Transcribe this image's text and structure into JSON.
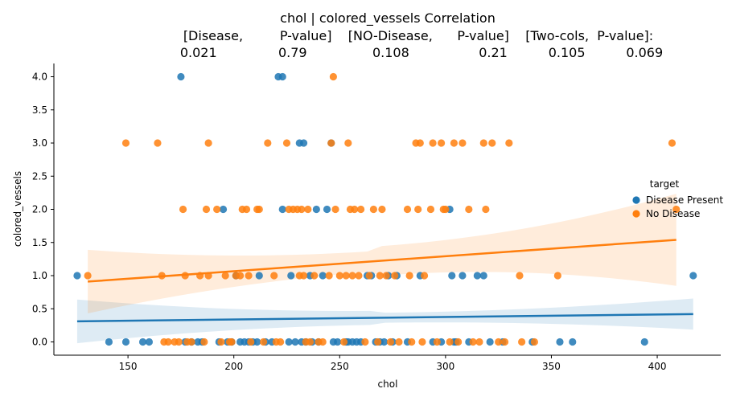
{
  "chart_data": {
    "type": "scatter",
    "title_lines": [
      "chol | colored_vessels    Correlation",
      "[Disease,         P-value]    [NO-Disease,      P-value]    [Two-cols,  P-value]:",
      "0.021               0.79                0.108                 0.21          0.105          0.069"
    ],
    "xlabel": "chol",
    "ylabel": "colored_vessels",
    "xlim": [
      115,
      430
    ],
    "ylim": [
      -0.2,
      4.2
    ],
    "xticks": [
      150,
      200,
      250,
      300,
      350,
      400
    ],
    "yticks": [
      0.0,
      0.5,
      1.0,
      1.5,
      2.0,
      2.5,
      3.0,
      3.5,
      4.0
    ],
    "xtick_labels": [
      "150",
      "200",
      "250",
      "300",
      "350",
      "400"
    ],
    "ytick_labels": [
      "0.0",
      "0.5",
      "1.0",
      "1.5",
      "2.0",
      "2.5",
      "3.0",
      "3.5",
      "4.0"
    ],
    "legend": {
      "title": "target",
      "placement": "right"
    },
    "grid": false,
    "series": [
      {
        "name": "Disease Present",
        "color": "#1f77b4",
        "regression": {
          "x": [
            126,
            417
          ],
          "y": [
            0.31,
            0.42
          ],
          "ci_lower": [
            -0.02,
            0.2
          ],
          "ci_upper": [
            0.64,
            0.67
          ]
        },
        "points": [
          [
            126,
            1
          ],
          [
            141,
            0
          ],
          [
            149,
            0
          ],
          [
            157,
            0
          ],
          [
            160,
            0
          ],
          [
            175,
            4
          ],
          [
            177,
            0
          ],
          [
            180,
            0
          ],
          [
            183,
            0
          ],
          [
            185,
            0
          ],
          [
            193,
            0
          ],
          [
            195,
            2
          ],
          [
            197,
            0
          ],
          [
            199,
            0
          ],
          [
            201,
            1
          ],
          [
            203,
            0
          ],
          [
            205,
            0
          ],
          [
            207,
            0
          ],
          [
            209,
            0
          ],
          [
            211,
            0
          ],
          [
            212,
            1
          ],
          [
            215,
            0
          ],
          [
            218,
            0
          ],
          [
            221,
            4
          ],
          [
            223,
            4
          ],
          [
            223,
            2
          ],
          [
            226,
            0
          ],
          [
            227,
            1
          ],
          [
            229,
            0
          ],
          [
            231,
            3
          ],
          [
            232,
            0
          ],
          [
            233,
            3
          ],
          [
            234,
            0
          ],
          [
            236,
            1
          ],
          [
            237,
            0
          ],
          [
            239,
            2
          ],
          [
            240,
            0
          ],
          [
            242,
            1
          ],
          [
            244,
            2
          ],
          [
            246,
            3
          ],
          [
            247,
            0
          ],
          [
            249,
            0
          ],
          [
            253,
            0
          ],
          [
            254,
            0
          ],
          [
            256,
            0
          ],
          [
            258,
            0
          ],
          [
            260,
            0
          ],
          [
            263,
            1
          ],
          [
            265,
            1
          ],
          [
            267,
            0
          ],
          [
            269,
            0
          ],
          [
            271,
            0
          ],
          [
            273,
            1
          ],
          [
            275,
            0
          ],
          [
            277,
            1
          ],
          [
            282,
            0
          ],
          [
            288,
            1
          ],
          [
            294,
            0
          ],
          [
            298,
            0
          ],
          [
            302,
            2
          ],
          [
            303,
            1
          ],
          [
            304,
            0
          ],
          [
            305,
            0
          ],
          [
            308,
            1
          ],
          [
            311,
            0
          ],
          [
            315,
            1
          ],
          [
            318,
            1
          ],
          [
            321,
            0
          ],
          [
            327,
            0
          ],
          [
            341,
            0
          ],
          [
            354,
            0
          ],
          [
            360,
            0
          ],
          [
            394,
            0
          ],
          [
            417,
            1
          ]
        ]
      },
      {
        "name": "No Disease",
        "color": "#ff7f0e",
        "regression": {
          "x": [
            131,
            409
          ],
          "y": [
            0.91,
            1.54
          ],
          "ci_lower": [
            0.44,
            0.85
          ],
          "ci_upper": [
            1.4,
            2.24
          ]
        },
        "points": [
          [
            131,
            1
          ],
          [
            149,
            3
          ],
          [
            164,
            3
          ],
          [
            166,
            1
          ],
          [
            167,
            0
          ],
          [
            169,
            0
          ],
          [
            172,
            0
          ],
          [
            174,
            0
          ],
          [
            176,
            2
          ],
          [
            177,
            1
          ],
          [
            178,
            0
          ],
          [
            180,
            0
          ],
          [
            184,
            1
          ],
          [
            186,
            0
          ],
          [
            187,
            2
          ],
          [
            188,
            3
          ],
          [
            188,
            1
          ],
          [
            192,
            2
          ],
          [
            194,
            0
          ],
          [
            196,
            1
          ],
          [
            198,
            0
          ],
          [
            199,
            0
          ],
          [
            201,
            1
          ],
          [
            203,
            1
          ],
          [
            204,
            2
          ],
          [
            206,
            2
          ],
          [
            207,
            1
          ],
          [
            208,
            0
          ],
          [
            211,
            2
          ],
          [
            212,
            2
          ],
          [
            214,
            0
          ],
          [
            216,
            3
          ],
          [
            219,
            1
          ],
          [
            220,
            0
          ],
          [
            222,
            0
          ],
          [
            225,
            3
          ],
          [
            226,
            2
          ],
          [
            228,
            2
          ],
          [
            230,
            2
          ],
          [
            231,
            1
          ],
          [
            232,
            2
          ],
          [
            233,
            1
          ],
          [
            234,
            0
          ],
          [
            235,
            2
          ],
          [
            236,
            0
          ],
          [
            238,
            1
          ],
          [
            240,
            0
          ],
          [
            242,
            0
          ],
          [
            245,
            1
          ],
          [
            246,
            3
          ],
          [
            247,
            4
          ],
          [
            248,
            2
          ],
          [
            250,
            1
          ],
          [
            252,
            0
          ],
          [
            253,
            1
          ],
          [
            254,
            3
          ],
          [
            255,
            2
          ],
          [
            256,
            1
          ],
          [
            257,
            2
          ],
          [
            259,
            1
          ],
          [
            260,
            2
          ],
          [
            262,
            0
          ],
          [
            264,
            1
          ],
          [
            266,
            2
          ],
          [
            268,
            0
          ],
          [
            269,
            1
          ],
          [
            270,
            2
          ],
          [
            272,
            1
          ],
          [
            274,
            0
          ],
          [
            276,
            1
          ],
          [
            278,
            0
          ],
          [
            282,
            2
          ],
          [
            283,
            1
          ],
          [
            284,
            0
          ],
          [
            286,
            3
          ],
          [
            287,
            2
          ],
          [
            288,
            3
          ],
          [
            289,
            0
          ],
          [
            290,
            1
          ],
          [
            293,
            2
          ],
          [
            294,
            3
          ],
          [
            296,
            0
          ],
          [
            298,
            3
          ],
          [
            299,
            2
          ],
          [
            300,
            2
          ],
          [
            302,
            0
          ],
          [
            304,
            3
          ],
          [
            306,
            0
          ],
          [
            308,
            3
          ],
          [
            311,
            2
          ],
          [
            313,
            0
          ],
          [
            316,
            0
          ],
          [
            318,
            3
          ],
          [
            319,
            2
          ],
          [
            322,
            3
          ],
          [
            325,
            0
          ],
          [
            328,
            0
          ],
          [
            330,
            3
          ],
          [
            335,
            1
          ],
          [
            336,
            0
          ],
          [
            342,
            0
          ],
          [
            353,
            1
          ],
          [
            407,
            3
          ],
          [
            409,
            2
          ]
        ]
      }
    ]
  }
}
